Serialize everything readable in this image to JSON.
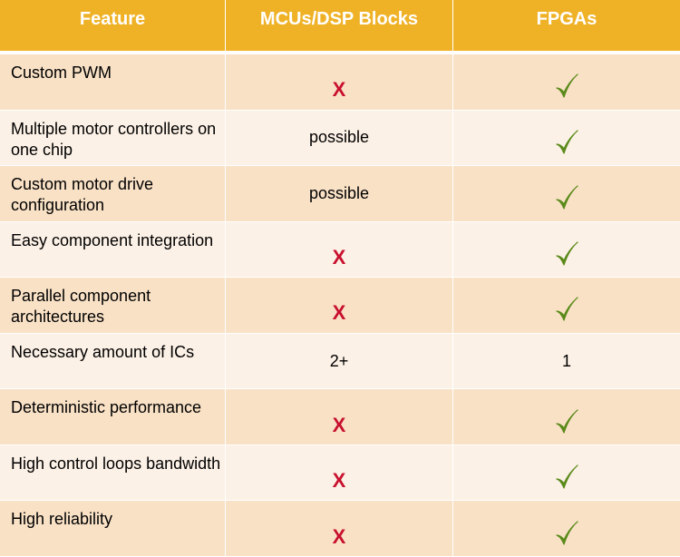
{
  "header": {
    "col1": "Feature",
    "col2": "MCUs/DSP Blocks",
    "col3": "FPGAs"
  },
  "colors": {
    "header": "#efb227",
    "row_dark": "#f9e1c6",
    "row_light": "#fcf1e6",
    "x_mark": "#c8102e",
    "check_mark": "#5a8a1a"
  },
  "rows": [
    {
      "feature": "Custom PWM",
      "mcu": "X",
      "mcu_type": "cross",
      "fpga": "✓",
      "fpga_type": "check"
    },
    {
      "feature": "Multiple motor controllers on one chip",
      "mcu": "possible",
      "mcu_type": "text",
      "fpga": "✓",
      "fpga_type": "check"
    },
    {
      "feature": "Custom motor drive configuration",
      "mcu": "possible",
      "mcu_type": "text",
      "fpga": "✓",
      "fpga_type": "check"
    },
    {
      "feature": "Easy component integration",
      "mcu": "X",
      "mcu_type": "cross",
      "fpga": "✓",
      "fpga_type": "check"
    },
    {
      "feature": "Parallel component architectures",
      "mcu": "X",
      "mcu_type": "cross",
      "fpga": "✓",
      "fpga_type": "check"
    },
    {
      "feature": "Necessary amount of ICs",
      "mcu": "2+",
      "mcu_type": "text",
      "fpga": "1",
      "fpga_type": "text"
    },
    {
      "feature": "Deterministic performance",
      "mcu": "X",
      "mcu_type": "cross",
      "fpga": "✓",
      "fpga_type": "check"
    },
    {
      "feature": "High control loops bandwidth",
      "mcu": "X",
      "mcu_type": "cross",
      "fpga": "✓",
      "fpga_type": "check"
    },
    {
      "feature": "High reliability",
      "mcu": "X",
      "mcu_type": "cross",
      "fpga": "✓",
      "fpga_type": "check"
    }
  ]
}
